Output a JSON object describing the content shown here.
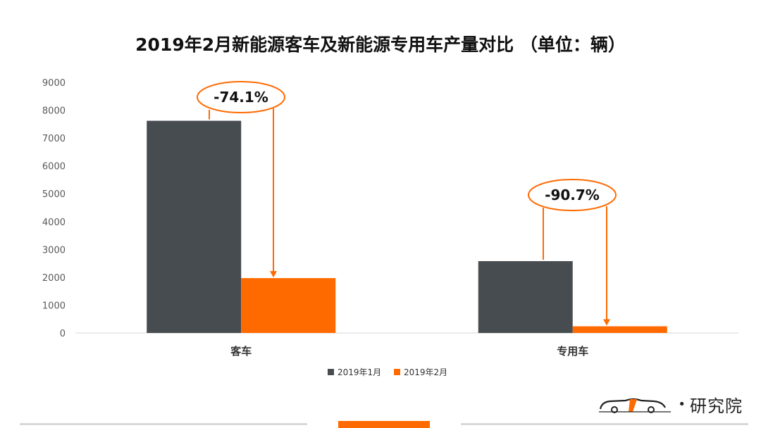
{
  "chart_data": {
    "type": "bar",
    "title": "2019年2月新能源客车及新能源专用车产量对比 （单位：辆）",
    "categories": [
      "客车",
      "专用车"
    ],
    "series": [
      {
        "name": "2019年1月",
        "values": [
          7620,
          2580
        ],
        "color": "#474c50"
      },
      {
        "name": "2019年2月",
        "values": [
          1970,
          240
        ],
        "color": "#ff6a00"
      }
    ],
    "yticks": [
      "0",
      "1000",
      "2000",
      "3000",
      "4000",
      "5000",
      "6000",
      "7000",
      "8000",
      "9000"
    ],
    "ylim": [
      0,
      9000
    ],
    "grid": false,
    "legend": "bottom",
    "annotations": [
      {
        "category": "客车",
        "text": "-74.1%"
      },
      {
        "category": "专用车",
        "text": "-90.7%"
      }
    ]
  },
  "brand": {
    "text": "研究院",
    "logo_icon": "car-logo-icon"
  },
  "colors": {
    "accent": "#ff6a00",
    "dark": "#474c50"
  }
}
